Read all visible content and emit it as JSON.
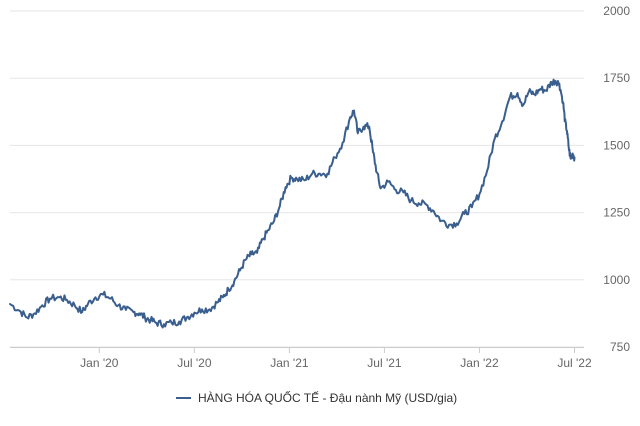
{
  "chart_data": {
    "type": "line",
    "title": "",
    "xlabel": "",
    "ylabel": "",
    "ylim": [
      750,
      2000
    ],
    "y_ticks": [
      750,
      1000,
      1250,
      1500,
      1750,
      2000
    ],
    "y_tick_labels": [
      "750",
      "1000",
      "1250",
      "1500",
      "1750",
      "2000"
    ],
    "x_ticks": [
      {
        "label": "Jan '20",
        "x": 2020.0
      },
      {
        "label": "Jul '20",
        "x": 2020.5
      },
      {
        "label": "Jan '21",
        "x": 2021.0
      },
      {
        "label": "Jul '21",
        "x": 2021.5
      },
      {
        "label": "Jan '22",
        "x": 2022.0
      },
      {
        "label": "Jul '22",
        "x": 2022.5
      }
    ],
    "xlim": [
      2019.53,
      2022.55
    ],
    "legend": {
      "position": "bottom-center"
    },
    "colors": {
      "series": "#3a5f8f",
      "grid": "#e6e6e6",
      "tick_text": "#666666"
    },
    "series": [
      {
        "name": "HÀNG HÓA QUỐC TẾ - Đậu nành Mỹ (USD/gia)",
        "points": [
          [
            2019.53,
            910
          ],
          [
            2019.58,
            885
          ],
          [
            2019.62,
            860
          ],
          [
            2019.66,
            875
          ],
          [
            2019.7,
            905
          ],
          [
            2019.74,
            930
          ],
          [
            2019.79,
            935
          ],
          [
            2019.83,
            925
          ],
          [
            2019.87,
            905
          ],
          [
            2019.91,
            880
          ],
          [
            2019.94,
            910
          ],
          [
            2019.98,
            935
          ],
          [
            2020.02,
            945
          ],
          [
            2020.06,
            930
          ],
          [
            2020.1,
            905
          ],
          [
            2020.14,
            888
          ],
          [
            2020.18,
            880
          ],
          [
            2020.21,
            875
          ],
          [
            2020.24,
            860
          ],
          [
            2020.27,
            850
          ],
          [
            2020.3,
            840
          ],
          [
            2020.34,
            835
          ],
          [
            2020.38,
            840
          ],
          [
            2020.42,
            845
          ],
          [
            2020.46,
            860
          ],
          [
            2020.5,
            878
          ],
          [
            2020.54,
            890
          ],
          [
            2020.58,
            890
          ],
          [
            2020.62,
            915
          ],
          [
            2020.65,
            935
          ],
          [
            2020.68,
            965
          ],
          [
            2020.71,
            995
          ],
          [
            2020.74,
            1035
          ],
          [
            2020.77,
            1075
          ],
          [
            2020.8,
            1095
          ],
          [
            2020.83,
            1100
          ],
          [
            2020.86,
            1150
          ],
          [
            2020.89,
            1185
          ],
          [
            2020.92,
            1220
          ],
          [
            2020.95,
            1275
          ],
          [
            2020.98,
            1345
          ],
          [
            2021.01,
            1380
          ],
          [
            2021.04,
            1375
          ],
          [
            2021.08,
            1370
          ],
          [
            2021.12,
            1395
          ],
          [
            2021.16,
            1395
          ],
          [
            2021.2,
            1395
          ],
          [
            2021.24,
            1455
          ],
          [
            2021.28,
            1510
          ],
          [
            2021.32,
            1605
          ],
          [
            2021.34,
            1630
          ],
          [
            2021.36,
            1545
          ],
          [
            2021.39,
            1570
          ],
          [
            2021.42,
            1570
          ],
          [
            2021.44,
            1475
          ],
          [
            2021.46,
            1400
          ],
          [
            2021.48,
            1340
          ],
          [
            2021.52,
            1365
          ],
          [
            2021.56,
            1335
          ],
          [
            2021.6,
            1325
          ],
          [
            2021.64,
            1295
          ],
          [
            2021.68,
            1285
          ],
          [
            2021.72,
            1280
          ],
          [
            2021.76,
            1255
          ],
          [
            2021.8,
            1220
          ],
          [
            2021.84,
            1205
          ],
          [
            2021.88,
            1210
          ],
          [
            2021.92,
            1245
          ],
          [
            2021.96,
            1270
          ],
          [
            2022.0,
            1320
          ],
          [
            2022.04,
            1405
          ],
          [
            2022.08,
            1525
          ],
          [
            2022.12,
            1590
          ],
          [
            2022.16,
            1680
          ],
          [
            2022.2,
            1695
          ],
          [
            2022.23,
            1650
          ],
          [
            2022.26,
            1700
          ],
          [
            2022.29,
            1690
          ],
          [
            2022.32,
            1710
          ],
          [
            2022.35,
            1705
          ],
          [
            2022.38,
            1735
          ],
          [
            2022.4,
            1740
          ],
          [
            2022.42,
            1730
          ],
          [
            2022.44,
            1660
          ],
          [
            2022.45,
            1590
          ],
          [
            2022.46,
            1555
          ],
          [
            2022.47,
            1490
          ],
          [
            2022.48,
            1450
          ],
          [
            2022.49,
            1470
          ],
          [
            2022.5,
            1455
          ]
        ]
      }
    ]
  }
}
